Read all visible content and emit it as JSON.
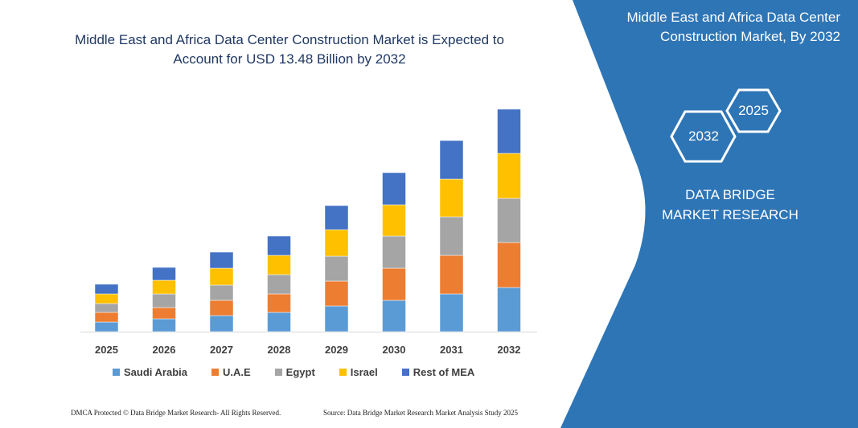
{
  "title": "Middle East and Africa Data Center Construction Market is Expected to Account for USD 13.48 Billion by 2032",
  "panel": {
    "title": "Middle East and Africa Data Center Construction Market, By 2032",
    "hex_2032": "2032",
    "hex_2025": "2025",
    "brand": "DATA BRIDGE MARKET RESEARCH",
    "color": "#2e75b6"
  },
  "footer": {
    "left": "DMCA Protected © Data Bridge Market Research- All Rights Reserved.",
    "right": "Source: Data Bridge Market Research  Market Analysis Study 2025"
  },
  "chart_data": {
    "type": "bar",
    "stacked": true,
    "categories": [
      "2025",
      "2026",
      "2027",
      "2028",
      "2029",
      "2030",
      "2031",
      "2032"
    ],
    "series": [
      {
        "name": "Saudi Arabia",
        "color": "#5b9bd5",
        "values": [
          12,
          16,
          20,
          24,
          32,
          39,
          47,
          55
        ]
      },
      {
        "name": "U.A.E",
        "color": "#ed7d31",
        "values": [
          12,
          14,
          19,
          23,
          31,
          40,
          48,
          56
        ]
      },
      {
        "name": "Egypt",
        "color": "#a5a5a5",
        "values": [
          11,
          17,
          19,
          24,
          31,
          40,
          48,
          55
        ]
      },
      {
        "name": "Israel",
        "color": "#ffc000",
        "values": [
          12,
          17,
          21,
          24,
          33,
          39,
          47,
          56
        ]
      },
      {
        "name": "Rest of MEA",
        "color": "#4472c4",
        "values": [
          12,
          16,
          20,
          24,
          30,
          40,
          48,
          55
        ]
      }
    ],
    "ylim": [
      0,
      280
    ],
    "y_axis_shown": false,
    "grid": false,
    "legend": "bottom",
    "xlabel": "",
    "ylabel": ""
  }
}
